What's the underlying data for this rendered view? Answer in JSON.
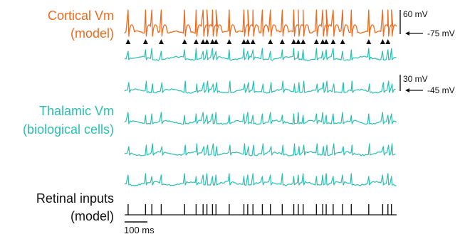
{
  "labels": {
    "cortical_line1": "Cortical Vm",
    "cortical_line2": "(model)",
    "thalamic_line1": "Thalamic Vm",
    "thalamic_line2": "(biological cells)",
    "retinal_line1": "Retinal inputs",
    "retinal_line2": "(model)"
  },
  "scalebars": {
    "cortical_amplitude": "60 mV",
    "cortical_baseline": "-75 mV",
    "thalamic_amplitude": "30 mV",
    "thalamic_baseline": "-45 mV",
    "time": "100 ms"
  },
  "colors": {
    "cortical": "#ec6b1e",
    "thalamic": "#2abfb2",
    "retinal": "#111111",
    "marker": "#111111"
  },
  "traces": {
    "spike_times_ms": [
      10,
      60,
      78,
      105,
      172,
      205,
      225,
      236,
      252,
      262,
      300,
      342,
      353,
      368,
      395,
      418,
      452,
      485,
      498,
      512,
      550,
      568,
      578,
      598,
      625,
      650,
      700,
      740,
      755,
      765
    ],
    "cortical_spike_indices": [
      0,
      1,
      2,
      3,
      4,
      5,
      6,
      7,
      8,
      9,
      10,
      11,
      12,
      13,
      14,
      15,
      16,
      17,
      18,
      19,
      20,
      21,
      22,
      23,
      24,
      25,
      26,
      27,
      28,
      29
    ],
    "thalamic_cell_count": 5,
    "time_window_ms": 780
  }
}
